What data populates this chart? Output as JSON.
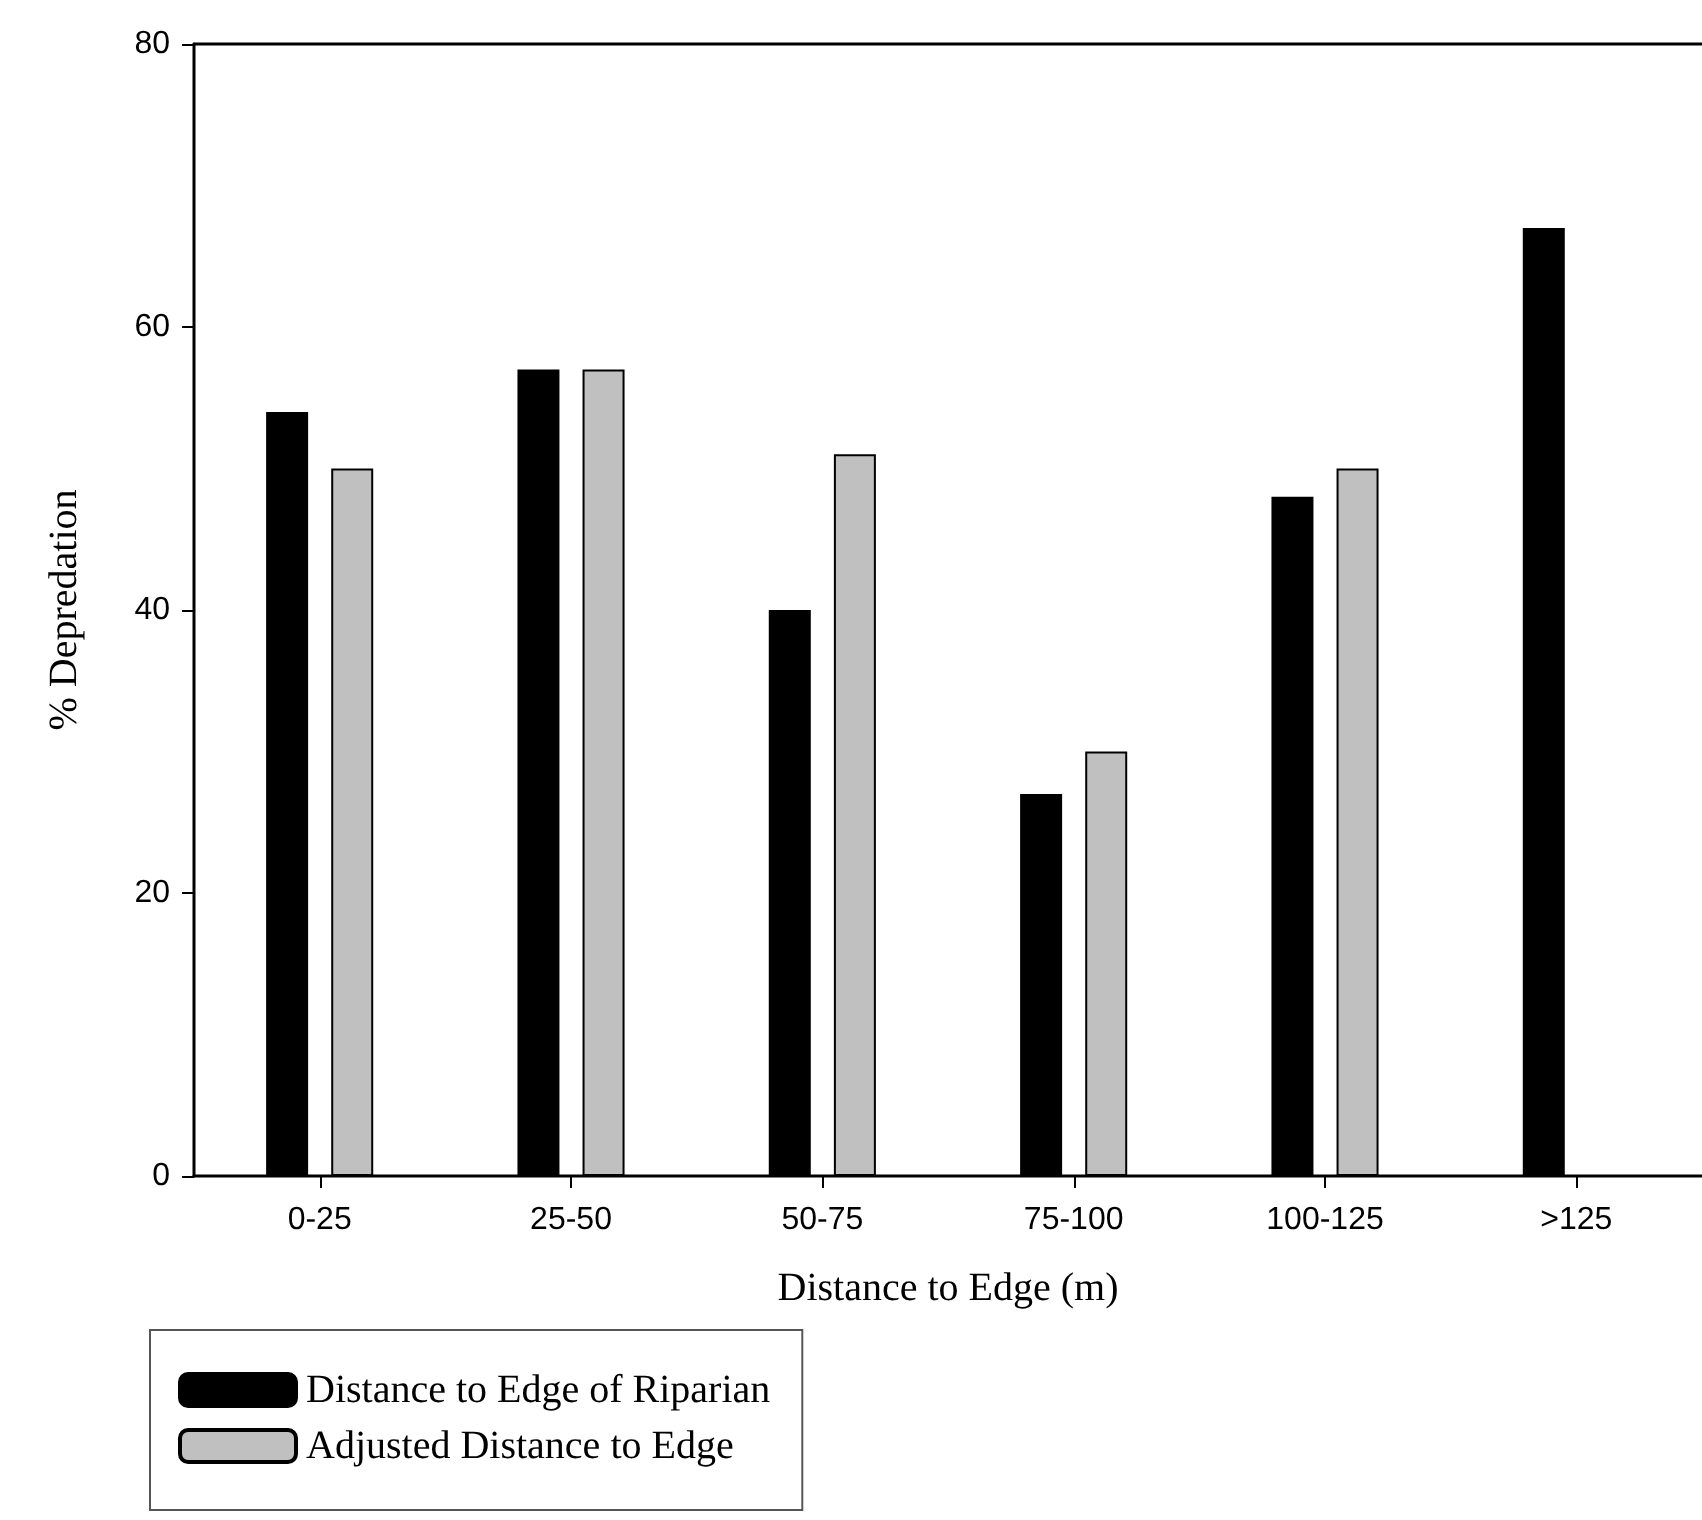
{
  "chart_data": {
    "type": "bar",
    "xlabel": "Distance to Edge (m)",
    "ylabel": "% Depredation",
    "categories": [
      "0-25",
      "25-50",
      "50-75",
      "75-100",
      "100-125",
      ">125"
    ],
    "series": [
      {
        "name": "Distance to Edge of Riparian",
        "color": "#000000",
        "values": [
          54,
          57,
          40,
          27,
          48,
          67
        ]
      },
      {
        "name": "Adjusted Distance to Edge",
        "color": "#c0c0c0",
        "values": [
          50,
          57,
          51,
          30,
          50,
          null
        ]
      }
    ],
    "ylim": [
      0,
      80
    ],
    "yticks": [
      0,
      20,
      40,
      60,
      80
    ],
    "grid": false,
    "legend": "bottom left"
  }
}
